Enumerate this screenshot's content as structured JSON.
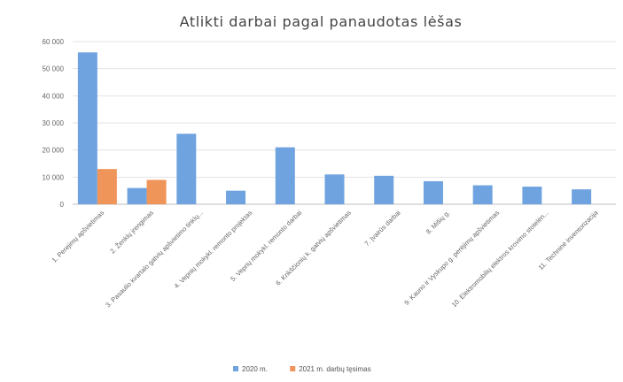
{
  "chart_data": {
    "type": "bar",
    "title": "Atlikti darbai pagal panaudotas lėšas",
    "xlabel": "",
    "ylabel": "",
    "ylim": [
      0,
      60000
    ],
    "yticks": [
      0,
      10000,
      20000,
      30000,
      40000,
      50000,
      60000
    ],
    "ytick_labels": [
      "0",
      "10 000",
      "20 000",
      "30 000",
      "40 000",
      "50 000",
      "60 000"
    ],
    "grid": true,
    "legend_position": "bottom",
    "categories": [
      "1. Perejimų apšvietimas",
      "2. Ženklų įrengimas",
      "3. Pasaulio kvartalo gatvių apšvietimo tinklų...",
      "4. Vepnių mokykl. remonto projektas",
      "5. Veprių mokykl. remonto darbai",
      "6. Krikščionių k. gatvių apšvietimas",
      "7. Įvairūs darbai",
      "8. Mišių g.",
      "9. Kauno ir Vyskupo g. perėjimų apšvietimas",
      "10. Elektromobilių elektros krovimo stotelėn...",
      "11. Techninė inventorizacija"
    ],
    "series": [
      {
        "name": "2020 m.",
        "color": "#6fa3e0",
        "values": [
          56000,
          6000,
          26000,
          5000,
          21000,
          11000,
          10500,
          8500,
          7000,
          6500,
          5500
        ]
      },
      {
        "name": "2021 m. darbų tęsimas",
        "color": "#f0955a",
        "values": [
          13000,
          9000,
          null,
          null,
          null,
          null,
          null,
          null,
          null,
          null,
          null
        ]
      }
    ]
  }
}
